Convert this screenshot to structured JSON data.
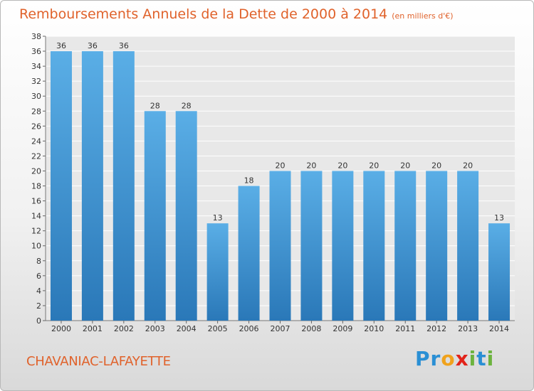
{
  "title": {
    "main": "Remboursements Annuels de la Dette de 2000 à 2014",
    "unit": "(en milliers d'€)"
  },
  "commune": "CHAVANIAC-LAFAYETTE",
  "brand": {
    "text": "Proxiti",
    "letters": [
      {
        "ch": "P",
        "color": "#2a8fd4"
      },
      {
        "ch": "r",
        "color": "#2a8fd4"
      },
      {
        "ch": "o",
        "color": "#f0a21c"
      },
      {
        "ch": "x",
        "color": "#e2231a"
      },
      {
        "ch": "i",
        "color": "#6cb33e"
      },
      {
        "ch": "t",
        "color": "#2a8fd4"
      },
      {
        "ch": "i",
        "color": "#6cb33e"
      }
    ]
  },
  "colors": {
    "accent": "#e0622b",
    "bar_light": "#5aaee6",
    "bar_dark": "#2a78b8"
  },
  "chart_data": {
    "type": "bar",
    "categories": [
      "2000",
      "2001",
      "2002",
      "2003",
      "2004",
      "2005",
      "2006",
      "2007",
      "2008",
      "2009",
      "2010",
      "2011",
      "2012",
      "2013",
      "2014"
    ],
    "values": [
      36,
      36,
      36,
      28,
      28,
      13,
      18,
      20,
      20,
      20,
      20,
      20,
      20,
      20,
      13
    ],
    "ylim": [
      0,
      38
    ],
    "yticks": [
      0,
      2,
      4,
      6,
      8,
      10,
      12,
      14,
      16,
      18,
      20,
      22,
      24,
      26,
      28,
      30,
      32,
      34,
      36,
      38
    ],
    "grid": true,
    "legend": "none",
    "xlabel": "",
    "ylabel": ""
  }
}
